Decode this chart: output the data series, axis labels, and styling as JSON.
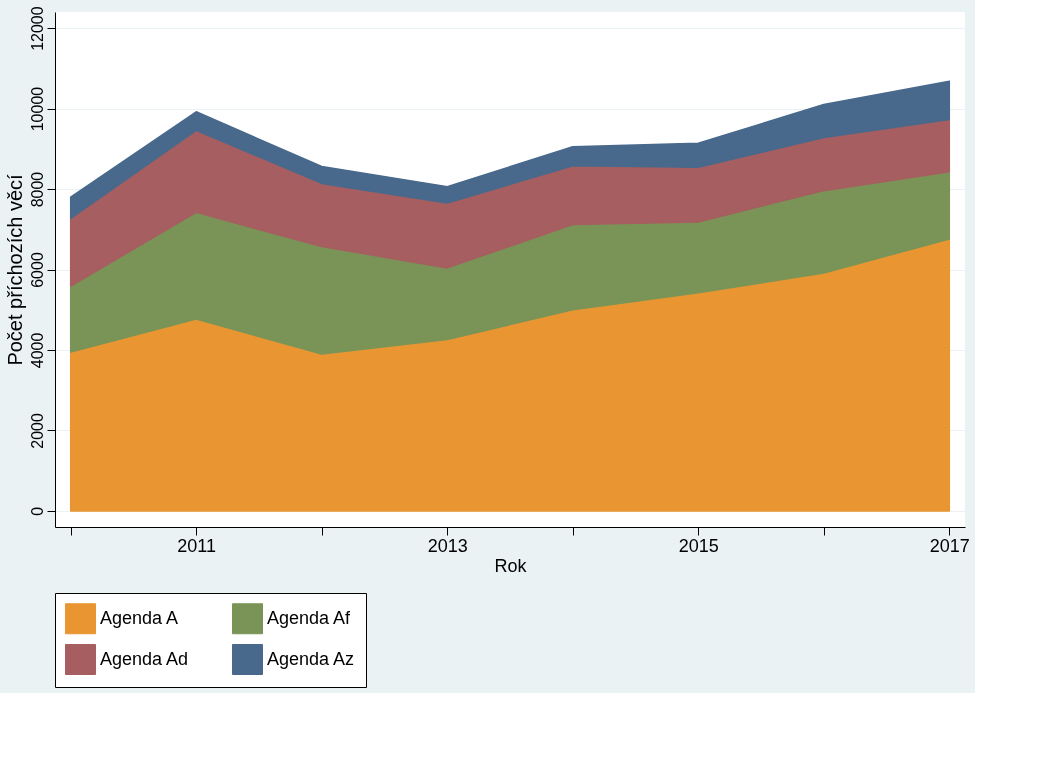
{
  "chart_data": {
    "type": "area",
    "stacked": true,
    "xlabel": "Rok",
    "ylabel": "Počet příchozích věcí",
    "x": [
      2010,
      2011,
      2012,
      2013,
      2014,
      2015,
      2016,
      2017
    ],
    "xlim": [
      2009.875,
      2017.125
    ],
    "xticks": [
      {
        "value": 2010,
        "label": null
      },
      2011,
      {
        "value": 2012,
        "label": null
      },
      2013,
      {
        "value": 2014,
        "label": null
      },
      2015,
      {
        "value": 2016,
        "label": null
      },
      2017
    ],
    "ylim": [
      -400,
      12400
    ],
    "yticks": [
      0,
      2000,
      4000,
      6000,
      8000,
      10000,
      12000
    ],
    "grid": "y",
    "legend": "bottom",
    "series": [
      {
        "name": "Agenda A",
        "color": "#e99632",
        "values": [
          3950,
          4770,
          3900,
          4260,
          5000,
          5420,
          5910,
          6760
        ]
      },
      {
        "name": "Agenda Af",
        "color": "#7a9457",
        "values": [
          1640,
          2650,
          2670,
          1780,
          2120,
          1760,
          2050,
          1670
        ]
      },
      {
        "name": "Agenda Ad",
        "color": "#a65e60",
        "values": [
          1680,
          2040,
          1570,
          1610,
          1460,
          1360,
          1320,
          1300
        ]
      },
      {
        "name": "Agenda Az",
        "color": "#48698c",
        "values": [
          530,
          460,
          420,
          410,
          470,
          600,
          820,
          950
        ]
      }
    ]
  }
}
